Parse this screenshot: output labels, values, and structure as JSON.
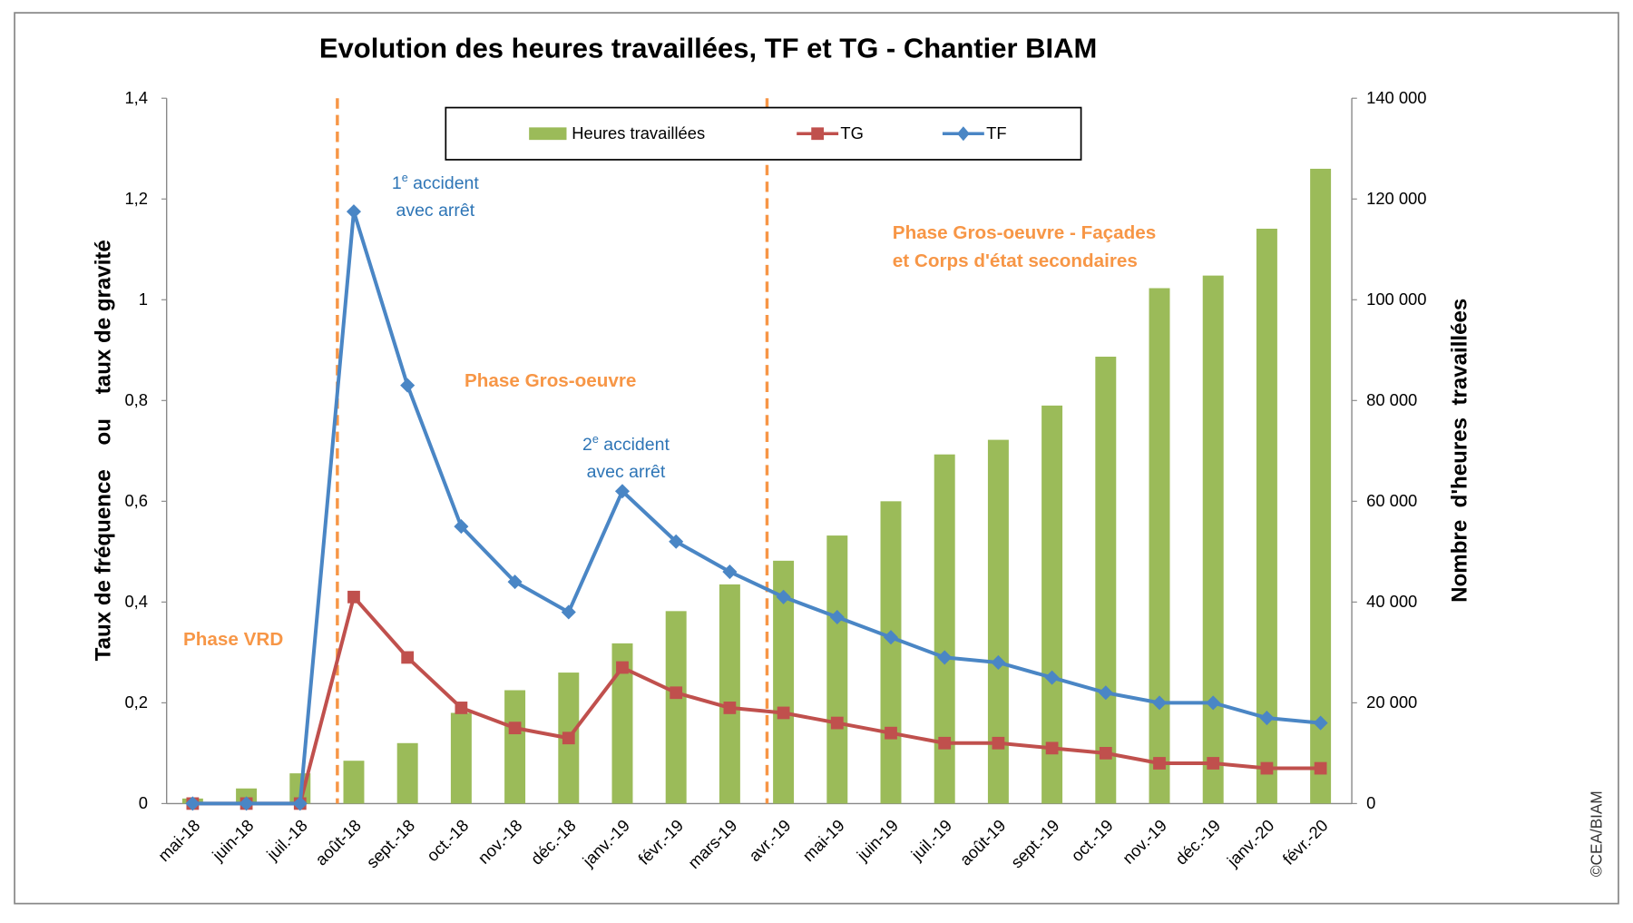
{
  "chart_data": {
    "type": "bar+line",
    "title": "Evolution des heures travaillées, TF et TG - Chantier BIAM",
    "ylabel_left": "Taux de fréquence    ou    taux de gravité",
    "ylabel_right": "Nombre  d'heures  travaillées",
    "ylim_left": [
      0,
      1.4
    ],
    "ylim_right": [
      0,
      140000
    ],
    "yticks_left": [
      "0",
      "0,2",
      "0,4",
      "0,6",
      "0,8",
      "1",
      "1,2",
      "1,4"
    ],
    "yticks_right": [
      "0",
      "20 000",
      "40 000",
      "60 000",
      "80 000",
      "100 000",
      "120 000",
      "140 000"
    ],
    "categories": [
      "mai-18",
      "juin-18",
      "juil.-18",
      "août-18",
      "sept.-18",
      "oct.-18",
      "nov.-18",
      "déc.-18",
      "janv.-19",
      "févr.-19",
      "mars-19",
      "avr.-19",
      "mai-19",
      "juin-19",
      "juil.-19",
      "août-19",
      "sept.-19",
      "oct.-19",
      "nov.-19",
      "déc.-19",
      "janv.-20",
      "févr.-20"
    ],
    "series": [
      {
        "name": "Heures travaillées",
        "kind": "bar",
        "axis": "right",
        "color": "#9bbb59",
        "values": [
          1000,
          3000,
          6000,
          8500,
          12000,
          18000,
          22500,
          26000,
          31800,
          38200,
          43500,
          48200,
          53200,
          60000,
          69300,
          72200,
          79000,
          88700,
          102300,
          104800,
          114100,
          126000
        ]
      },
      {
        "name": "TG",
        "kind": "line",
        "axis": "left",
        "color": "#c0504d",
        "marker": "square",
        "values": [
          0,
          0,
          0,
          0.41,
          0.29,
          0.19,
          0.15,
          0.13,
          0.27,
          0.22,
          0.19,
          0.18,
          0.16,
          0.14,
          0.12,
          0.12,
          0.11,
          0.1,
          0.08,
          0.08,
          0.07,
          0.07
        ]
      },
      {
        "name": "TF",
        "kind": "line",
        "axis": "left",
        "color": "#4a86c5",
        "marker": "diamond",
        "values": [
          0,
          0,
          0,
          1.175,
          0.83,
          0.55,
          0.44,
          0.38,
          0.62,
          0.52,
          0.46,
          0.41,
          0.37,
          0.33,
          0.29,
          0.28,
          0.25,
          0.22,
          0.2,
          0.2,
          0.17,
          0.16
        ]
      }
    ],
    "phase_separators_after": [
      "juil.-18",
      "mars-19"
    ],
    "annotations": {
      "phase_vrd": "Phase VRD",
      "phase_go": "Phase Gros-oeuvre",
      "phase_go2_l1": "Phase Gros-oeuvre - Façades",
      "phase_go2_l2": "et Corps d'état secondaires",
      "acc1_num": "1",
      "acc1_sup": "e",
      "acc1_l1": " accident",
      "acc1_l2": "avec arrêt",
      "acc2_num": "2",
      "acc2_sup": "e",
      "acc2_l1": " accident",
      "acc2_l2": "avec arrêt"
    },
    "legend_position": "top-center",
    "grid": false,
    "annotation_color": "#f79646",
    "accident_color": "#2e75b6"
  },
  "copyright": "©CEA/BIAM"
}
